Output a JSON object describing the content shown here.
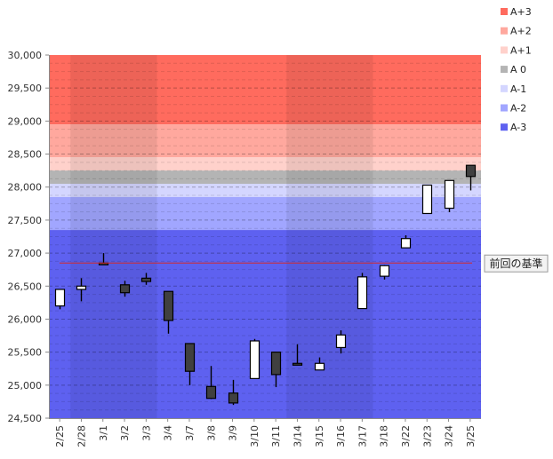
{
  "chart_data": {
    "type": "candlestick",
    "categories": [
      "2/25",
      "2/28",
      "3/1",
      "3/2",
      "3/3",
      "3/4",
      "3/7",
      "3/8",
      "3/9",
      "3/10",
      "3/11",
      "3/14",
      "3/15",
      "3/16",
      "3/17",
      "3/18",
      "3/22",
      "3/23",
      "3/24",
      "3/25"
    ],
    "candles": [
      {
        "open": 26200,
        "high": 26450,
        "low": 26150,
        "close": 26450
      },
      {
        "open": 26450,
        "high": 26620,
        "low": 26270,
        "close": 26500
      },
      {
        "open": 26850,
        "high": 27000,
        "low": 26820,
        "close": 26830
      },
      {
        "open": 26520,
        "high": 26580,
        "low": 26340,
        "close": 26400
      },
      {
        "open": 26620,
        "high": 26700,
        "low": 26520,
        "close": 26570
      },
      {
        "open": 26420,
        "high": 26420,
        "low": 25780,
        "close": 25980
      },
      {
        "open": 25630,
        "high": 25630,
        "low": 25000,
        "close": 25210
      },
      {
        "open": 24980,
        "high": 25290,
        "low": 24790,
        "close": 24800
      },
      {
        "open": 24880,
        "high": 25080,
        "low": 24700,
        "close": 24730
      },
      {
        "open": 25100,
        "high": 25700,
        "low": 25100,
        "close": 25670
      },
      {
        "open": 25500,
        "high": 25500,
        "low": 24970,
        "close": 25160
      },
      {
        "open": 25330,
        "high": 25620,
        "low": 25310,
        "close": 25310
      },
      {
        "open": 25230,
        "high": 25420,
        "low": 25230,
        "close": 25330
      },
      {
        "open": 25570,
        "high": 25830,
        "low": 25480,
        "close": 25760
      },
      {
        "open": 26160,
        "high": 26700,
        "low": 26160,
        "close": 26640
      },
      {
        "open": 26650,
        "high": 26820,
        "low": 26600,
        "close": 26810
      },
      {
        "open": 27080,
        "high": 27270,
        "low": 27080,
        "close": 27220
      },
      {
        "open": 27600,
        "high": 28030,
        "low": 27600,
        "close": 28030
      },
      {
        "open": 27680,
        "high": 28100,
        "low": 27620,
        "close": 28100
      },
      {
        "open": 28330,
        "high": 28330,
        "low": 27950,
        "close": 28160
      }
    ],
    "ylim": [
      24500,
      30000
    ],
    "yticks": [
      24500,
      25000,
      25500,
      26000,
      26500,
      27000,
      27500,
      28000,
      28500,
      29000,
      29500,
      30000
    ],
    "ytick_labels": [
      "24,500",
      "25,000",
      "25,500",
      "26,000",
      "26,500",
      "27,000",
      "27,500",
      "28,000",
      "28,500",
      "29,000",
      "29,500",
      "30,000"
    ],
    "bands": [
      {
        "name": "A+3",
        "from": 28950,
        "to": 30000,
        "color": "#ff6b5e"
      },
      {
        "name": "A+2",
        "from": 28450,
        "to": 28950,
        "color": "#ffa89e"
      },
      {
        "name": "A+1",
        "from": 28250,
        "to": 28450,
        "color": "#ffd1cb"
      },
      {
        "name": "A 0",
        "from": 28050,
        "to": 28250,
        "color": "#b4b4b4"
      },
      {
        "name": "A-1",
        "from": 27850,
        "to": 28050,
        "color": "#d4d6ff"
      },
      {
        "name": "A-2",
        "from": 27350,
        "to": 27850,
        "color": "#a1a6ff"
      },
      {
        "name": "A-3",
        "from": 24500,
        "to": 27350,
        "color": "#5e61f0"
      }
    ],
    "reference": {
      "value": 26850,
      "label": "前回の基準",
      "color": "#d42a2a"
    },
    "legend_position": "right",
    "grid": true,
    "up_color": "#ffffff",
    "down_color": "#404040"
  }
}
